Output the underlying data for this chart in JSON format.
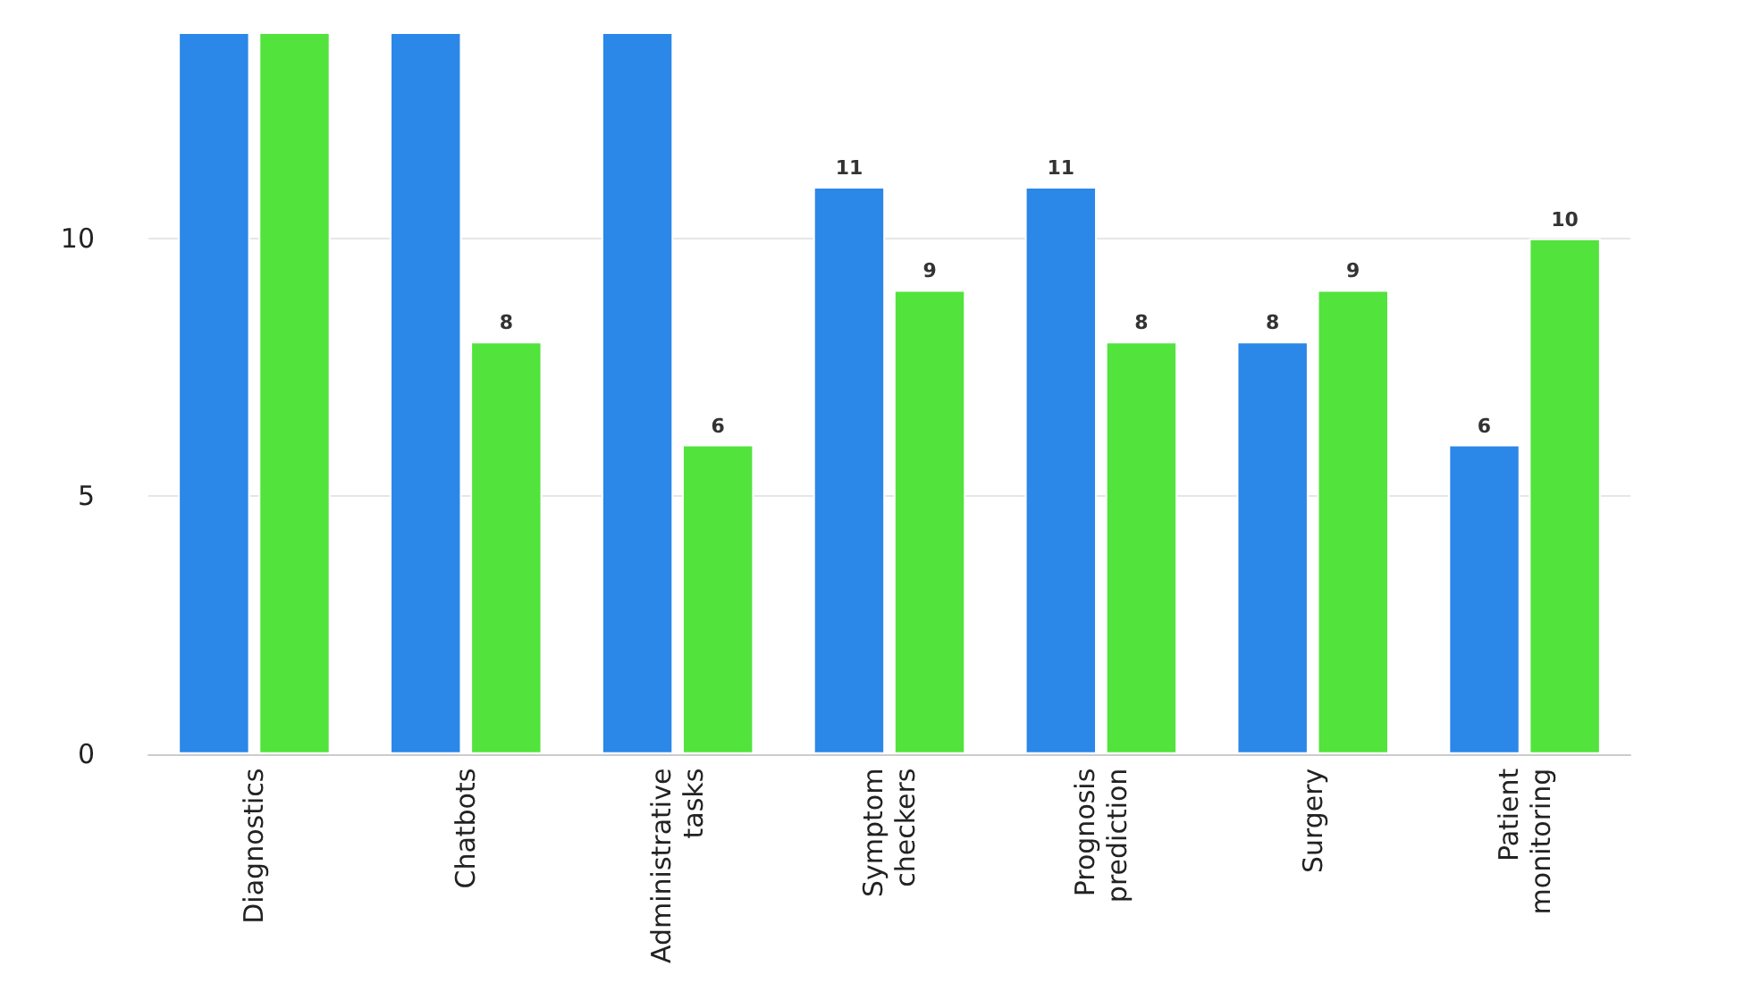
{
  "chart_data": {
    "type": "bar",
    "categories": [
      "Diagnostics",
      "Chatbots",
      "Administrative\ntasks",
      "Symptom\ncheckers",
      "Prognosis\nprediction",
      "Surgery",
      "Patient\nmonitoring"
    ],
    "series": [
      {
        "color": "#2b87e8",
        "values": [
          14,
          14,
          14,
          11,
          11,
          8,
          6
        ],
        "value_labels": [
          null,
          null,
          null,
          "11",
          "11",
          "8",
          "6"
        ]
      },
      {
        "color": "#52e33c",
        "values": [
          14,
          8,
          6,
          9,
          8,
          9,
          10
        ],
        "value_labels": [
          null,
          "8",
          "6",
          "9",
          "8",
          "9",
          "10"
        ]
      }
    ],
    "ylim": [
      0,
      14
    ],
    "yticks": [
      0,
      5,
      10
    ],
    "grid": "y"
  }
}
